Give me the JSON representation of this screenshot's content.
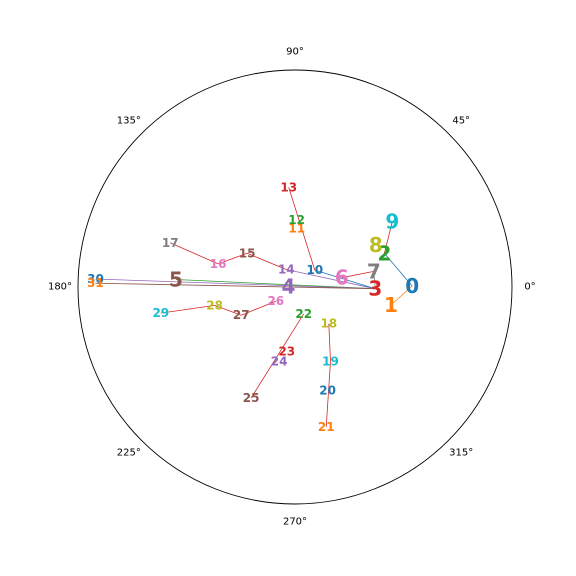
{
  "chart_data": {
    "type": "polar-network",
    "title": "",
    "angle_ticks": [
      "0°",
      "45°",
      "90°",
      "135°",
      "180°",
      "225°",
      "270°",
      "315°"
    ],
    "grid": false,
    "nodes": [
      {
        "label": "0",
        "theta": 0.5,
        "r": 0.54,
        "color": "#1f77b4",
        "size": "large"
      },
      {
        "label": "1",
        "theta": 349.4,
        "r": 0.45,
        "color": "#ff7f0e",
        "size": "large"
      },
      {
        "label": "2",
        "theta": 20.6,
        "r": 0.44,
        "color": "#2ca02c",
        "size": "large"
      },
      {
        "label": "3",
        "theta": 358.8,
        "r": 0.37,
        "color": "#d62728",
        "size": "large"
      },
      {
        "label": "4",
        "theta": 174.5,
        "r": 0.03,
        "color": "#9467bd",
        "size": "large"
      },
      {
        "label": "5",
        "theta": 176.4,
        "r": 0.55,
        "color": "#8c564b",
        "size": "large"
      },
      {
        "label": "6",
        "theta": 11.2,
        "r": 0.22,
        "color": "#e377c2",
        "size": "large"
      },
      {
        "label": "7",
        "theta": 11.2,
        "r": 0.37,
        "color": "#7f7f7f",
        "size": "large"
      },
      {
        "label": "8",
        "theta": 27.5,
        "r": 0.42,
        "color": "#bcbd22",
        "size": "large"
      },
      {
        "label": "9",
        "theta": 33.9,
        "r": 0.54,
        "color": "#17becf",
        "size": "large"
      },
      {
        "label": "10",
        "theta": 40.6,
        "r": 0.12,
        "color": "#1f77b4",
        "size": "small"
      },
      {
        "label": "11",
        "theta": 88.3,
        "r": 0.27,
        "color": "#ff7f0e",
        "size": "small"
      },
      {
        "label": "12",
        "theta": 88.6,
        "r": 0.31,
        "color": "#2ca02c",
        "size": "small"
      },
      {
        "label": "13",
        "theta": 93.6,
        "r": 0.46,
        "color": "#d62728",
        "size": "small"
      },
      {
        "label": "14",
        "theta": 116.6,
        "r": 0.09,
        "color": "#9467bd",
        "size": "small"
      },
      {
        "label": "15",
        "theta": 144.9,
        "r": 0.27,
        "color": "#8c564b",
        "size": "small"
      },
      {
        "label": "16",
        "theta": 163.3,
        "r": 0.37,
        "color": "#e377c2",
        "size": "small"
      },
      {
        "label": "17",
        "theta": 160.5,
        "r": 0.61,
        "color": "#7f7f7f",
        "size": "small"
      },
      {
        "label": "18",
        "theta": 312.6,
        "r": 0.23,
        "color": "#bcbd22",
        "size": "small"
      },
      {
        "label": "19",
        "theta": 295.5,
        "r": 0.38,
        "color": "#17becf",
        "size": "small"
      },
      {
        "label": "20",
        "theta": 287.5,
        "r": 0.5,
        "color": "#1f77b4",
        "size": "small"
      },
      {
        "label": "21",
        "theta": 282.6,
        "r": 0.66,
        "color": "#ff7f0e",
        "size": "small"
      },
      {
        "label": "22",
        "theta": 287.9,
        "r": 0.13,
        "color": "#2ca02c",
        "size": "small"
      },
      {
        "label": "23",
        "theta": 262.8,
        "r": 0.3,
        "color": "#d62728",
        "size": "small"
      },
      {
        "label": "24",
        "theta": 257.9,
        "r": 0.35,
        "color": "#9467bd",
        "size": "small"
      },
      {
        "label": "25",
        "theta": 248.4,
        "r": 0.55,
        "color": "#8c564b",
        "size": "small"
      },
      {
        "label": "26",
        "theta": 216.6,
        "r": 0.11,
        "color": "#e377c2",
        "size": "small"
      },
      {
        "label": "27",
        "theta": 207.7,
        "r": 0.28,
        "color": "#8c564b",
        "size": "small"
      },
      {
        "label": "28",
        "theta": 192.9,
        "r": 0.38,
        "color": "#bcbd22",
        "size": "small"
      },
      {
        "label": "29",
        "theta": 191.0,
        "r": 0.63,
        "color": "#17becf",
        "size": "small"
      },
      {
        "label": "30",
        "theta": 177.7,
        "r": 0.92,
        "color": "#1f77b4",
        "size": "small"
      },
      {
        "label": "31",
        "theta": 178.9,
        "r": 0.92,
        "color": "#ff7f0e",
        "size": "small"
      }
    ],
    "edges": [
      {
        "from": "0",
        "to": "1",
        "color": "#ff7f0e"
      },
      {
        "from": "0",
        "to": "2",
        "color": "#1f77b4"
      },
      {
        "from": "2",
        "to": "9",
        "color": "#d62728"
      },
      {
        "from": "7",
        "to": "3",
        "color": "#7f7f7f"
      },
      {
        "from": "6",
        "to": "7",
        "color": "#d62728"
      },
      {
        "from": "3",
        "to": "14",
        "color": "#9467bd"
      },
      {
        "from": "3",
        "to": "10",
        "color": "#1f77b4"
      },
      {
        "from": "3",
        "to": "5",
        "color": "#2ca02c"
      },
      {
        "from": "3",
        "to": "30",
        "color": "#9467bd"
      },
      {
        "from": "3",
        "to": "31",
        "color": "#8c564b"
      },
      {
        "from": "10",
        "to": "13",
        "color": "#d62728"
      },
      {
        "from": "14",
        "to": "15",
        "color": "#d62728"
      },
      {
        "from": "15",
        "to": "16",
        "color": "#d62728"
      },
      {
        "from": "16",
        "to": "17",
        "color": "#d62728"
      },
      {
        "from": "18",
        "to": "19",
        "color": "#d62728"
      },
      {
        "from": "19",
        "to": "21",
        "color": "#d62728"
      },
      {
        "from": "22",
        "to": "25",
        "color": "#d62728"
      },
      {
        "from": "26",
        "to": "27",
        "color": "#d62728"
      },
      {
        "from": "27",
        "to": "28",
        "color": "#d62728"
      },
      {
        "from": "28",
        "to": "29",
        "color": "#d62728"
      }
    ]
  }
}
